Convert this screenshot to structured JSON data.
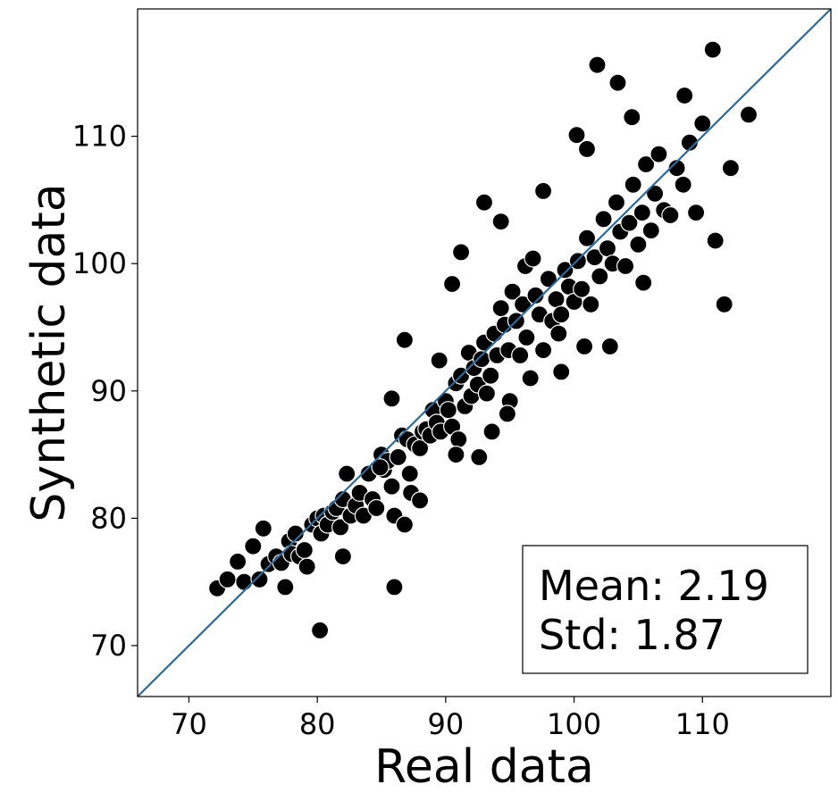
{
  "chart_data": {
    "type": "scatter",
    "title": "",
    "xlabel": "Real data",
    "ylabel": "Synthetic data",
    "xlim": [
      66,
      120
    ],
    "ylim": [
      66,
      120
    ],
    "xticks": [
      70,
      80,
      90,
      100,
      110
    ],
    "yticks": [
      70,
      80,
      90,
      100,
      110
    ],
    "grid": false,
    "identity_line": {
      "color": "#2c6a9a"
    },
    "marker_color": "#000000",
    "marker_edge_color": "#ffffff",
    "stats_box": {
      "lines": [
        "Mean: 2.19",
        "Std: 1.87"
      ],
      "placement": "bottom-right"
    },
    "points": {
      "x": [
        72.2,
        73.0,
        73.8,
        74.3,
        75.0,
        75.5,
        75.8,
        76.2,
        76.8,
        77.2,
        77.5,
        77.8,
        78.0,
        78.3,
        78.6,
        79.0,
        79.2,
        79.6,
        80.0,
        80.3,
        80.5,
        80.8,
        81.2,
        81.5,
        81.8,
        82.0,
        82.3,
        82.6,
        83.0,
        83.3,
        83.6,
        84.0,
        84.3,
        84.6,
        85.0,
        85.2,
        85.5,
        85.8,
        86.0,
        86.3,
        86.6,
        86.8,
        87.0,
        87.3,
        87.6,
        88.0,
        88.2,
        88.5,
        88.8,
        89.0,
        89.3,
        89.6,
        90.0,
        90.2,
        90.5,
        90.8,
        91.0,
        91.2,
        91.5,
        91.8,
        92.0,
        92.2,
        92.5,
        92.8,
        93.0,
        93.2,
        93.5,
        93.8,
        94.0,
        94.3,
        94.6,
        94.9,
        95.2,
        95.5,
        95.8,
        96.0,
        96.3,
        96.6,
        97.0,
        97.3,
        97.6,
        98.0,
        98.3,
        98.6,
        99.0,
        99.3,
        99.6,
        100.0,
        100.3,
        100.6,
        101.0,
        101.3,
        101.6,
        102.0,
        102.3,
        102.6,
        103.0,
        103.3,
        103.6,
        104.0,
        104.3,
        104.6,
        105.0,
        105.3,
        105.6,
        106.0,
        106.3,
        106.6,
        107.0,
        107.5,
        108.0,
        108.5,
        109.0,
        109.5,
        110.0,
        111.0,
        112.2,
        113.6,
        80.2,
        86.0,
        86.8,
        82.0,
        90.5,
        93.0,
        94.3,
        101.8,
        103.4,
        110.8,
        111.7,
        91.2,
        85.8,
        97.6,
        100.2,
        101.0,
        104.5,
        96.2,
        88.0,
        92.6,
        99.0,
        95.0,
        89.5,
        87.2,
        94.8,
        98.8,
        102.8,
        90.8,
        84.9,
        93.6,
        96.8,
        100.8,
        105.4,
        108.6
      ],
      "y": [
        74.5,
        75.2,
        76.6,
        75.0,
        77.8,
        75.2,
        79.2,
        76.4,
        77.0,
        76.5,
        74.6,
        78.2,
        77.2,
        78.8,
        77.0,
        77.5,
        76.2,
        79.5,
        80.0,
        78.8,
        80.2,
        79.5,
        80.5,
        80.8,
        79.3,
        81.5,
        83.5,
        80.2,
        81.0,
        82.0,
        80.2,
        83.5,
        81.5,
        80.8,
        85.0,
        83.8,
        84.5,
        82.5,
        80.2,
        84.8,
        86.5,
        79.5,
        86.2,
        82.0,
        85.8,
        85.5,
        86.8,
        87.0,
        86.5,
        88.5,
        87.5,
        86.8,
        89.2,
        88.5,
        87.2,
        90.6,
        86.2,
        91.2,
        88.8,
        93.0,
        89.6,
        91.8,
        90.5,
        92.5,
        93.8,
        89.8,
        91.2,
        94.5,
        92.8,
        96.5,
        95.2,
        93.2,
        97.8,
        95.5,
        92.8,
        96.8,
        94.2,
        91.0,
        97.5,
        96.0,
        93.2,
        98.8,
        95.5,
        97.2,
        96.0,
        99.5,
        98.2,
        97.0,
        100.2,
        98.0,
        102.0,
        96.8,
        100.5,
        99.0,
        103.5,
        101.2,
        100.0,
        104.8,
        102.5,
        99.8,
        103.2,
        106.2,
        101.5,
        104.0,
        107.8,
        102.6,
        105.5,
        108.6,
        104.2,
        103.8,
        107.5,
        106.2,
        109.5,
        104.0,
        111.0,
        101.8,
        107.5,
        111.7,
        71.2,
        74.6,
        94.0,
        77.0,
        98.4,
        104.8,
        103.3,
        115.6,
        114.2,
        116.8,
        96.8,
        100.9,
        89.4,
        105.7,
        110.1,
        109.0,
        111.5,
        99.8,
        81.4,
        84.8,
        91.5,
        89.2,
        92.4,
        83.5,
        88.2,
        94.5,
        93.5,
        85.0,
        84.0,
        86.8,
        100.4,
        93.5,
        98.5,
        113.2
      ]
    }
  }
}
